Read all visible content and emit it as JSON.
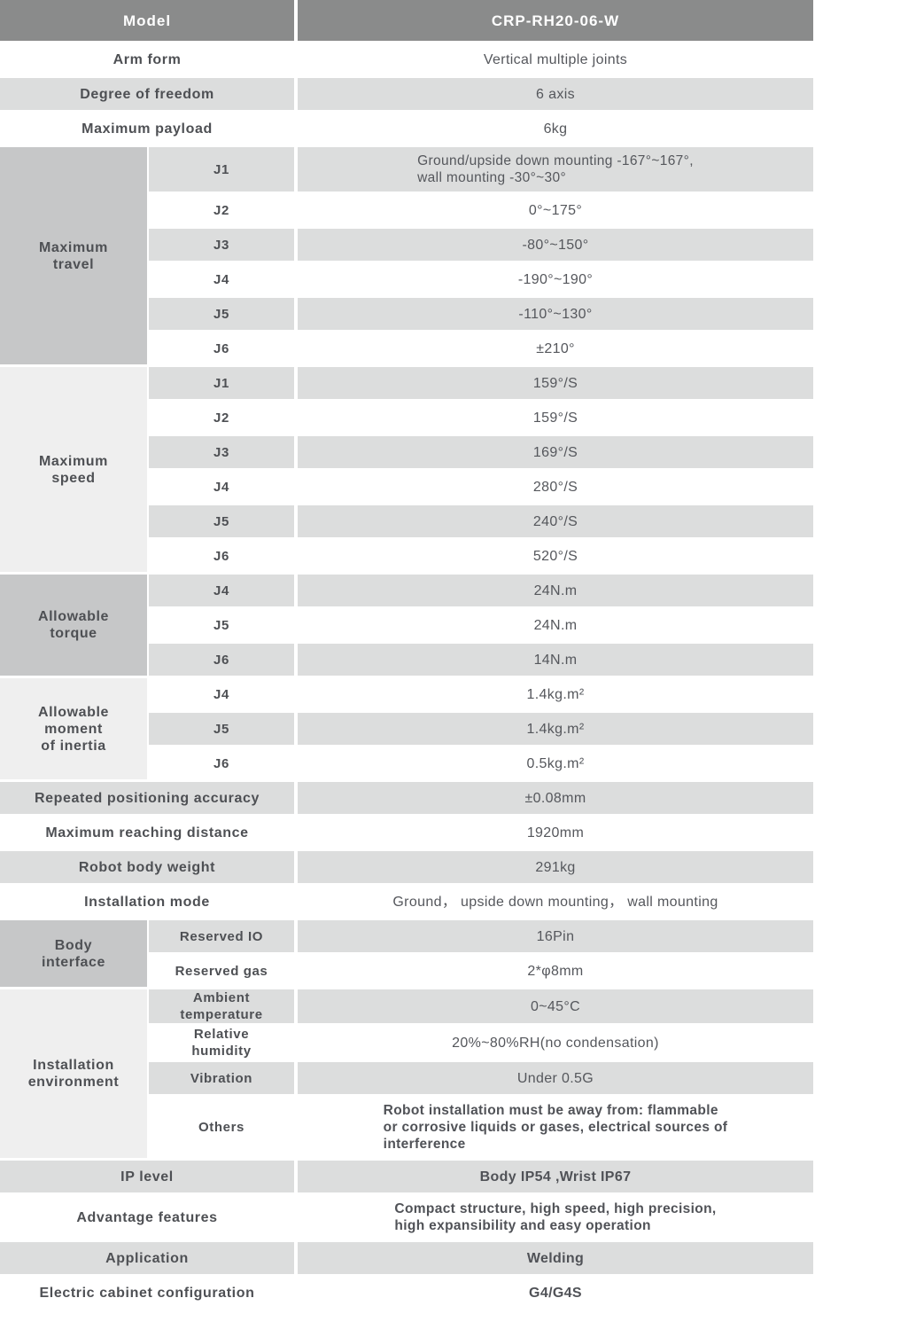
{
  "colors": {
    "header_bg": "#8a8b8b",
    "header_text": "#ffffff",
    "row_gray": "#dcdddd",
    "row_white": "#ffffff",
    "category_dark": "#c6c7c8",
    "category_light": "#efefef",
    "text": "#55575c"
  },
  "header": {
    "label": "Model",
    "value": "CRP-RH20-06-W"
  },
  "sections": [
    {
      "kind": "row",
      "shade": "white",
      "label": "Arm form",
      "value": "Vertical multiple joints"
    },
    {
      "kind": "row",
      "shade": "gray",
      "label": "Degree of freedom",
      "value": "6 axis"
    },
    {
      "kind": "row",
      "shade": "white",
      "label": "Maximum payload",
      "value": "6kg"
    },
    {
      "kind": "group",
      "category": "Maximum\ntravel",
      "cat_shade": "dark",
      "rows": [
        {
          "sub": "J1",
          "shade": "gray",
          "value": "Ground/upside down mounting -167°~167°,\nwall mounting -30°~30°",
          "multiline": true
        },
        {
          "sub": "J2",
          "shade": "white",
          "value": "0°~175°"
        },
        {
          "sub": "J3",
          "shade": "gray",
          "value": "-80°~150°"
        },
        {
          "sub": "J4",
          "shade": "white",
          "value": "-190°~190°"
        },
        {
          "sub": "J5",
          "shade": "gray",
          "value": "-110°~130°"
        },
        {
          "sub": "J6",
          "shade": "white",
          "value": "±210°"
        }
      ]
    },
    {
      "kind": "group",
      "category": "Maximum\nspeed",
      "cat_shade": "light",
      "rows": [
        {
          "sub": "J1",
          "shade": "gray",
          "value": "159°/S"
        },
        {
          "sub": "J2",
          "shade": "white",
          "value": "159°/S"
        },
        {
          "sub": "J3",
          "shade": "gray",
          "value": "169°/S"
        },
        {
          "sub": "J4",
          "shade": "white",
          "value": "280°/S"
        },
        {
          "sub": "J5",
          "shade": "gray",
          "value": "240°/S"
        },
        {
          "sub": "J6",
          "shade": "white",
          "value": "520°/S"
        }
      ]
    },
    {
      "kind": "group",
      "category": "Allowable\ntorque",
      "cat_shade": "dark",
      "rows": [
        {
          "sub": "J4",
          "shade": "gray",
          "value": "24N.m"
        },
        {
          "sub": "J5",
          "shade": "white",
          "value": "24N.m"
        },
        {
          "sub": "J6",
          "shade": "gray",
          "value": "14N.m"
        }
      ]
    },
    {
      "kind": "group",
      "category": "Allowable\nmoment\nof inertia",
      "cat_shade": "light",
      "rows": [
        {
          "sub": "J4",
          "shade": "white",
          "value": "1.4kg.m²"
        },
        {
          "sub": "J5",
          "shade": "gray",
          "value": "1.4kg.m²"
        },
        {
          "sub": "J6",
          "shade": "white",
          "value": "0.5kg.m²"
        }
      ]
    },
    {
      "kind": "row",
      "shade": "gray",
      "label": "Repeated positioning accuracy",
      "value": "±0.08mm"
    },
    {
      "kind": "row",
      "shade": "white",
      "label": "Maximum reaching distance",
      "value": "1920mm"
    },
    {
      "kind": "row",
      "shade": "gray",
      "label": "Robot body weight",
      "value": "291kg"
    },
    {
      "kind": "row",
      "shade": "white",
      "label": "Installation mode",
      "value": "Ground， upside down mounting， wall mounting"
    },
    {
      "kind": "group",
      "category": "Body\ninterface",
      "cat_shade": "dark",
      "rows": [
        {
          "sub": "Reserved IO",
          "shade": "gray",
          "value": "16Pin"
        },
        {
          "sub": "Reserved gas",
          "shade": "white",
          "value": "2*φ8mm"
        }
      ]
    },
    {
      "kind": "group",
      "category": "Installation\nenvironment",
      "cat_shade": "light",
      "rows": [
        {
          "sub": "Ambient\ntemperature",
          "shade": "gray",
          "value": "0~45°C"
        },
        {
          "sub": "Relative\nhumidity",
          "shade": "white",
          "value": "20%~80%RH(no condensation)"
        },
        {
          "sub": "Vibration",
          "shade": "gray",
          "value": "Under 0.5G"
        },
        {
          "sub": "Others",
          "shade": "white",
          "value": "Robot installation must be away from: flammable\nor corrosive liquids or gases, electrical sources of\ninterference",
          "multiline": true,
          "bold": true
        }
      ]
    },
    {
      "kind": "row",
      "shade": "gray",
      "label": "IP level",
      "value": "Body IP54 ,Wrist IP67",
      "bold": true
    },
    {
      "kind": "row",
      "shade": "white",
      "label": "Advantage features",
      "value": "Compact structure, high speed, high precision,\nhigh expansibility and easy operation",
      "multiline": true,
      "bold": true
    },
    {
      "kind": "row",
      "shade": "gray",
      "label": "Application",
      "value": "Welding",
      "bold": true
    },
    {
      "kind": "row",
      "shade": "white",
      "label": "Electric cabinet configuration",
      "value": "G4/G4S",
      "bold": true
    }
  ]
}
